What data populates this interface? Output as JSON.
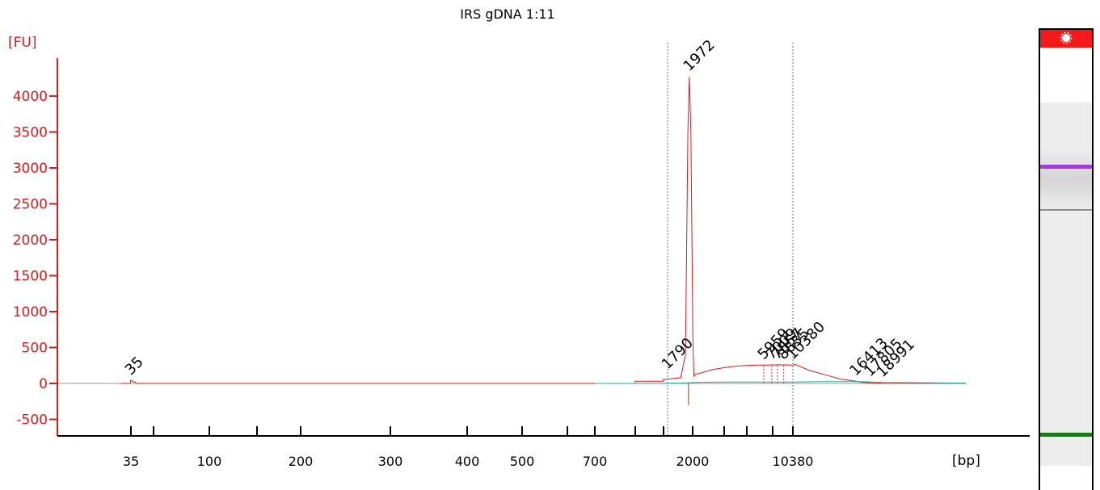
{
  "chart_data": {
    "type": "line",
    "title": "IRS gDNA 1:11",
    "ylabel": "[FU]",
    "xlabel": "[bp]",
    "ylim": [
      -700,
      4500
    ],
    "yticks": [
      -500,
      0,
      500,
      1000,
      1500,
      2000,
      2500,
      3000,
      3500,
      4000
    ],
    "xticks": [
      {
        "pos": 35,
        "label": "35"
      },
      {
        "pos": 50,
        "label": ""
      },
      {
        "pos": 100,
        "label": "100"
      },
      {
        "pos": 150,
        "label": ""
      },
      {
        "pos": 200,
        "label": "200"
      },
      {
        "pos": 300,
        "label": "300"
      },
      {
        "pos": 400,
        "label": "400"
      },
      {
        "pos": 500,
        "label": "500"
      },
      {
        "pos": 600,
        "label": ""
      },
      {
        "pos": 700,
        "label": "700"
      },
      {
        "pos": 1000,
        "label": ""
      },
      {
        "pos": 1500,
        "label": ""
      },
      {
        "pos": 2000,
        "label": "2000"
      },
      {
        "pos": 3000,
        "label": ""
      },
      {
        "pos": 4000,
        "label": ""
      },
      {
        "pos": 7000,
        "label": ""
      },
      {
        "pos": 10380,
        "label": "10380"
      }
    ],
    "xaxis_unit_label": "[bp]",
    "vlines": [
      1790,
      10380
    ],
    "series": [
      {
        "color": "#d81b1b",
        "points": [
          [
            20,
            0
          ],
          [
            34,
            0
          ],
          [
            34.5,
            40
          ],
          [
            36,
            40
          ],
          [
            36.5,
            20
          ],
          [
            38,
            20
          ],
          [
            38.5,
            0
          ],
          [
            700,
            0
          ],
          [
            1000,
            0
          ],
          [
            1000.5,
            30
          ],
          [
            1500,
            30
          ],
          [
            1500.5,
            60
          ],
          [
            1790,
            60
          ],
          [
            1900,
            80
          ],
          [
            1940,
            400
          ],
          [
            1960,
            3500
          ],
          [
            1972,
            4270
          ],
          [
            1985,
            3500
          ],
          [
            2010,
            500
          ],
          [
            2040,
            100
          ],
          [
            2100,
            130
          ],
          [
            2300,
            150
          ],
          [
            2600,
            190
          ],
          [
            3000,
            220
          ],
          [
            3500,
            240
          ],
          [
            4000,
            250
          ],
          [
            5000,
            255
          ],
          [
            5959,
            255
          ],
          [
            7000,
            258
          ],
          [
            8000,
            260
          ],
          [
            10380,
            255
          ],
          [
            10600,
            265
          ],
          [
            11000,
            240
          ],
          [
            12000,
            180
          ],
          [
            13500,
            120
          ],
          [
            15000,
            60
          ],
          [
            16413,
            30
          ],
          [
            17000,
            15
          ],
          [
            19000,
            5
          ],
          [
            22000,
            3
          ],
          [
            30000,
            2
          ]
        ]
      },
      {
        "color": "#2aa69a",
        "points": [
          [
            700,
            0
          ],
          [
            1500,
            0
          ],
          [
            1790,
            5
          ],
          [
            1900,
            5
          ],
          [
            2100,
            15
          ],
          [
            3000,
            20
          ],
          [
            10380,
            20
          ],
          [
            13000,
            25
          ],
          [
            17000,
            25
          ],
          [
            19000,
            15
          ],
          [
            30000,
            5
          ]
        ]
      }
    ],
    "peaks": [
      {
        "x": 35,
        "y": 40,
        "label": "35",
        "color": "#1a8a1a"
      },
      {
        "x": 1790,
        "y": 120,
        "label": "1790",
        "color": "#000000"
      },
      {
        "x": 1972,
        "y": 4270,
        "label": "1972",
        "color": "#000000"
      },
      {
        "x": 5959,
        "y": 255,
        "label": "5959",
        "color": "#000000"
      },
      {
        "x": 6900,
        "y": 255,
        "label": "7009",
        "color": "#000000"
      },
      {
        "x": 7800,
        "y": 255,
        "label": "7857",
        "color": "#000000"
      },
      {
        "x": 8850,
        "y": 255,
        "label": "8835",
        "color": "#000000"
      },
      {
        "x": 10380,
        "y": 255,
        "label": "10380",
        "color": "#9b3fd8"
      },
      {
        "x": 16413,
        "y": 30,
        "label": "16413",
        "color": "#000000"
      },
      {
        "x": 17805,
        "y": 20,
        "label": "17805",
        "color": "#000000"
      },
      {
        "x": 18991,
        "y": 10,
        "label": "18991",
        "color": "#000000"
      }
    ]
  },
  "gel": {
    "top_marker_color": "#f21a1a",
    "upper_marker_color": "#9b3fd8",
    "lower_marker_color": "#1a7a1a",
    "faint_band_color": "#8c8c8c"
  }
}
